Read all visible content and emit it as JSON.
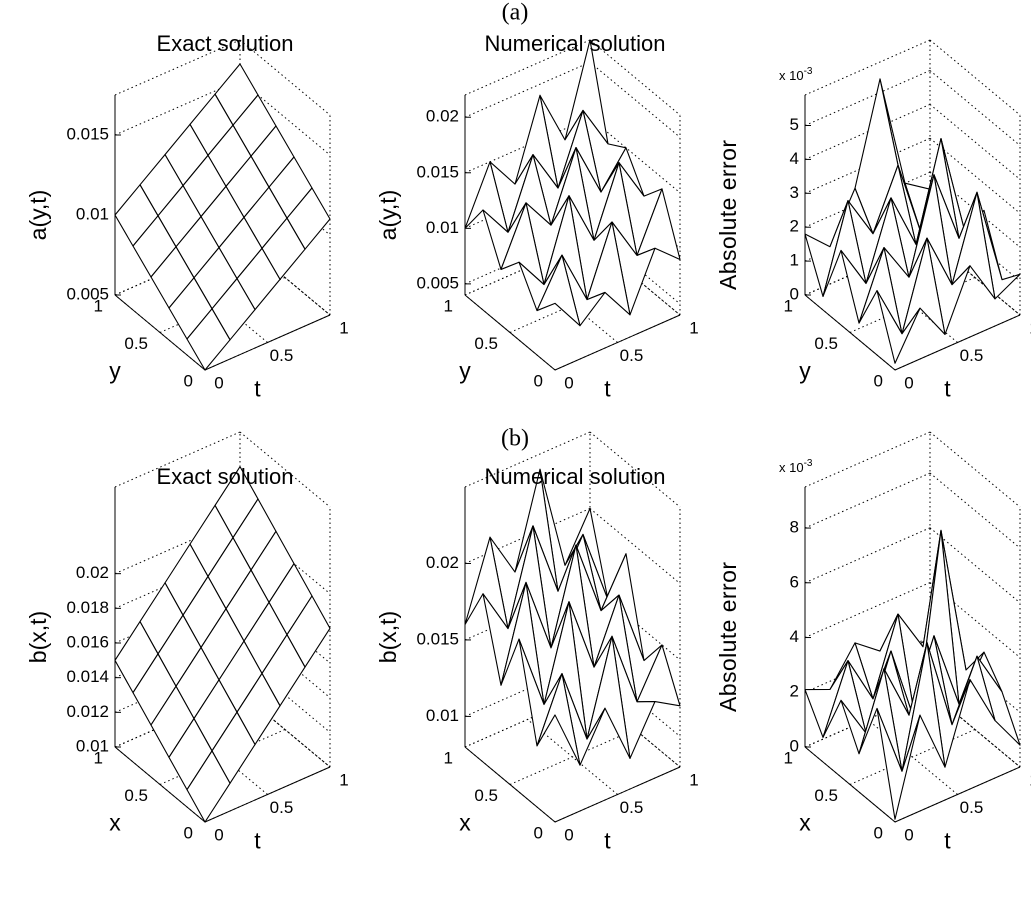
{
  "figure_labels": [
    "(a)",
    "(b)"
  ],
  "chart_data": [
    {
      "type": "surface",
      "title": "Exact solution",
      "zlabel": "a(y,t)",
      "xlabel": "y",
      "tlabel": "t",
      "xlim": [
        0,
        1
      ],
      "xticks": [
        0,
        0.5,
        1
      ],
      "tlim": [
        0,
        1
      ],
      "tticks": [
        0,
        0.5,
        1
      ],
      "zlim": [
        0.005,
        0.0175
      ],
      "zticks": [
        0.005,
        0.01,
        0.015
      ],
      "z": [
        [
          0.005,
          0.0062,
          0.0074,
          0.0086,
          0.0098,
          0.011
        ],
        [
          0.006,
          0.0072,
          0.0084,
          0.0096,
          0.0108,
          0.012
        ],
        [
          0.007,
          0.0082,
          0.0094,
          0.0106,
          0.0118,
          0.013
        ],
        [
          0.008,
          0.0092,
          0.0104,
          0.0116,
          0.0128,
          0.014
        ],
        [
          0.009,
          0.0102,
          0.0114,
          0.0126,
          0.0138,
          0.015
        ],
        [
          0.01,
          0.0112,
          0.0124,
          0.0136,
          0.0148,
          0.016
        ]
      ]
    },
    {
      "type": "surface",
      "title": "Numerical solution",
      "zlabel": "a(y,t)",
      "xlabel": "y",
      "tlabel": "t",
      "xlim": [
        0,
        1
      ],
      "xticks": [
        0,
        0.5,
        1
      ],
      "tlim": [
        0,
        1
      ],
      "tticks": [
        0,
        0.5,
        1
      ],
      "zlim": [
        0.004,
        0.022
      ],
      "zticks": [
        0.005,
        0.01,
        0.015,
        0.02
      ],
      "z": [
        [
          0.01,
          0.007,
          0.009,
          0.006,
          0.011,
          0.009
        ],
        [
          0.008,
          0.012,
          0.007,
          0.013,
          0.009,
          0.014
        ],
        [
          0.011,
          0.008,
          0.015,
          0.01,
          0.016,
          0.012
        ],
        [
          0.009,
          0.014,
          0.011,
          0.017,
          0.012,
          0.015
        ],
        [
          0.013,
          0.01,
          0.016,
          0.012,
          0.018,
          0.014
        ],
        [
          0.01,
          0.015,
          0.012,
          0.019,
          0.014,
          0.022
        ]
      ]
    },
    {
      "type": "surface",
      "zlabel": "Absolute error",
      "xlabel": "y",
      "tlabel": "t",
      "multiplier": {
        "base": "x 10",
        "exponent": "-3"
      },
      "xlim": [
        0,
        1
      ],
      "xticks": [
        0,
        0.5,
        1
      ],
      "tlim": [
        0,
        1
      ],
      "tticks": [
        0,
        0.5,
        1
      ],
      "zlim": [
        0,
        5.9
      ],
      "zticks": [
        0,
        1,
        2,
        3,
        4,
        5
      ],
      "z": [
        [
          0.2,
          1.5,
          0.4,
          2.1,
          0.8,
          1.2
        ],
        [
          1.9,
          0.3,
          2.8,
          1.1,
          3.5,
          0.6
        ],
        [
          0.5,
          2.4,
          1.2,
          3.9,
          1.7,
          2.2
        ],
        [
          2.2,
          0.9,
          3.1,
          1.4,
          4.2,
          1.0
        ],
        [
          0.4,
          2.9,
          1.6,
          3.3,
          0.8,
          2.6
        ],
        [
          1.8,
          1.1,
          2.5,
          5.4,
          2.0,
          1.5
        ]
      ]
    },
    {
      "type": "surface",
      "title": "Exact solution",
      "zlabel": "b(x,t)",
      "xlabel": "x",
      "tlabel": "t",
      "xlim": [
        0,
        1
      ],
      "xticks": [
        0,
        0.5,
        1
      ],
      "tlim": [
        0,
        1
      ],
      "tticks": [
        0,
        0.5,
        1
      ],
      "zlim": [
        0.01,
        0.025
      ],
      "zticks": [
        0.01,
        0.012,
        0.014,
        0.016,
        0.018,
        0.02
      ],
      "z": [
        [
          0.01,
          0.0116,
          0.0132,
          0.0148,
          0.0164,
          0.018
        ],
        [
          0.011,
          0.0126,
          0.0142,
          0.0158,
          0.0174,
          0.019
        ],
        [
          0.012,
          0.0136,
          0.0152,
          0.0168,
          0.0184,
          0.02
        ],
        [
          0.013,
          0.0146,
          0.0162,
          0.0178,
          0.0194,
          0.021
        ],
        [
          0.014,
          0.0156,
          0.0172,
          0.0188,
          0.0204,
          0.022
        ],
        [
          0.015,
          0.0166,
          0.0182,
          0.0198,
          0.0214,
          0.023
        ]
      ]
    },
    {
      "type": "surface",
      "title": "Numerical solution",
      "zlabel": "b(x,t)",
      "xlabel": "x",
      "tlabel": "t",
      "xlim": [
        0,
        1
      ],
      "xticks": [
        0,
        0.5,
        1
      ],
      "tlim": [
        0,
        1
      ],
      "tticks": [
        0,
        0.5,
        1
      ],
      "zlim": [
        0.008,
        0.025
      ],
      "zticks": [
        0.01,
        0.015,
        0.02
      ],
      "z": [
        [
          0.015,
          0.011,
          0.014,
          0.01,
          0.013,
          0.012
        ],
        [
          0.012,
          0.016,
          0.011,
          0.017,
          0.012,
          0.015
        ],
        [
          0.018,
          0.013,
          0.019,
          0.014,
          0.018,
          0.013
        ],
        [
          0.014,
          0.02,
          0.015,
          0.021,
          0.016,
          0.019
        ],
        [
          0.019,
          0.016,
          0.022,
          0.017,
          0.02,
          0.015
        ],
        [
          0.016,
          0.021,
          0.018,
          0.024,
          0.017,
          0.02
        ]
      ]
    },
    {
      "type": "surface",
      "zlabel": "Absolute error",
      "xlabel": "x",
      "tlabel": "t",
      "multiplier": {
        "base": "x 10",
        "exponent": "-3"
      },
      "xlim": [
        0,
        1
      ],
      "xticks": [
        0,
        0.5,
        1
      ],
      "tlim": [
        0,
        1
      ],
      "tticks": [
        0,
        0.5,
        1
      ],
      "zlim": [
        0,
        9.5
      ],
      "zticks": [
        0,
        2,
        4,
        6,
        8
      ],
      "z": [
        [
          0.1,
          3.5,
          1.2,
          4.0,
          2.1,
          0.8
        ],
        [
          3.6,
          0.9,
          5.2,
          1.8,
          3.9,
          2.2
        ],
        [
          1.4,
          4.1,
          2.0,
          4.5,
          1.6,
          3.1
        ],
        [
          2.8,
          1.2,
          3.8,
          0.7,
          7.4,
          1.9
        ],
        [
          0.9,
          3.3,
          1.5,
          4.2,
          2.6,
          2.4
        ],
        [
          2.1,
          1.7,
          3.0,
          2.3,
          1.8,
          2.0
        ]
      ]
    }
  ]
}
